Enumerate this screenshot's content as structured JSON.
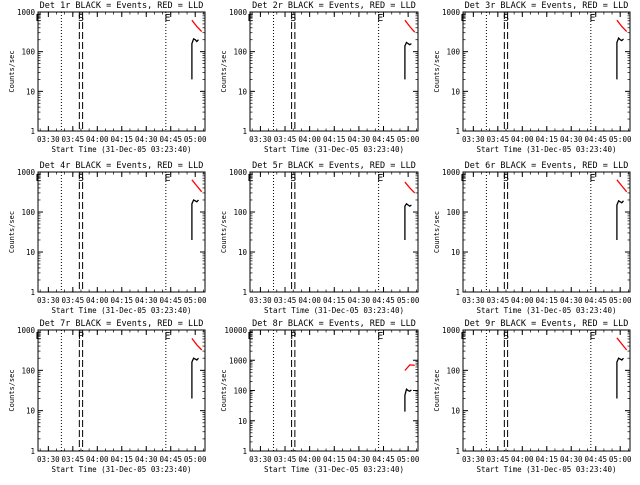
{
  "colors": {
    "events": "#000000",
    "lld": "#ff0000",
    "background": "#ffffff"
  },
  "chart_data": [
    {
      "type": "line",
      "detector": "1r",
      "title": "Det 1r BLACK = Events, RED = LLD",
      "xlabel": "Start Time (31-Dec-05 03:23:40)",
      "ylabel": "Counts/sec",
      "log_y": true,
      "ylim": [
        1,
        1000
      ],
      "ytick_labels": [
        "1",
        "10",
        "100",
        "1000"
      ],
      "xtick_labels": [
        "03:30",
        "03:45",
        "04:00",
        "04:15",
        "04:30",
        "04:45",
        "05:00"
      ],
      "dotted_lines": [
        "03:38",
        "04:42"
      ],
      "dashed_lines": [
        "03:49",
        "03:51"
      ],
      "markers": [
        {
          "text": "E",
          "x": "03:24"
        },
        {
          "text": "S",
          "x": "03:50"
        },
        {
          "text": "E",
          "x": "04:43"
        }
      ],
      "series": [
        {
          "name": "LLD",
          "x": [
            "04:58",
            "05:01",
            "05:04"
          ],
          "y": [
            620,
            430,
            320
          ]
        },
        {
          "name": "Events",
          "x": [
            "04:58",
            "04:58",
            "04:59",
            "05:00",
            "05:01",
            "05:02"
          ],
          "y": [
            20,
            160,
            210,
            200,
            180,
            200
          ]
        }
      ]
    },
    {
      "type": "line",
      "detector": "2r",
      "title": "Det 2r BLACK = Events, RED = LLD",
      "xlabel": "Start Time (31-Dec-05 03:23:40)",
      "ylabel": "Counts/sec",
      "log_y": true,
      "ylim": [
        1,
        1000
      ],
      "ytick_labels": [
        "1",
        "10",
        "100",
        "1000"
      ],
      "xtick_labels": [
        "03:30",
        "03:45",
        "04:00",
        "04:15",
        "04:30",
        "04:45",
        "05:00"
      ],
      "dotted_lines": [
        "03:38",
        "04:42"
      ],
      "dashed_lines": [
        "03:49",
        "03:51"
      ],
      "markers": [
        {
          "text": "E",
          "x": "03:24"
        },
        {
          "text": "S",
          "x": "03:50"
        },
        {
          "text": "E",
          "x": "04:43"
        }
      ],
      "series": [
        {
          "name": "LLD",
          "x": [
            "04:58",
            "05:01",
            "05:04"
          ],
          "y": [
            620,
            430,
            310
          ]
        },
        {
          "name": "Events",
          "x": [
            "04:58",
            "04:58",
            "04:59",
            "05:00",
            "05:01",
            "05:02"
          ],
          "y": [
            20,
            140,
            170,
            160,
            150,
            160
          ]
        }
      ]
    },
    {
      "type": "line",
      "detector": "3r",
      "title": "Det 3r BLACK = Events, RED = LLD",
      "xlabel": "Start Time (31-Dec-05 03:23:40)",
      "ylabel": "Counts/sec",
      "log_y": true,
      "ylim": [
        1,
        1000
      ],
      "ytick_labels": [
        "1",
        "10",
        "100",
        "1000"
      ],
      "xtick_labels": [
        "03:30",
        "03:45",
        "04:00",
        "04:15",
        "04:30",
        "04:45",
        "05:00"
      ],
      "dotted_lines": [
        "03:38",
        "04:42"
      ],
      "dashed_lines": [
        "03:49",
        "03:51"
      ],
      "markers": [
        {
          "text": "E",
          "x": "03:24"
        },
        {
          "text": "S",
          "x": "03:50"
        },
        {
          "text": "E",
          "x": "04:43"
        }
      ],
      "series": [
        {
          "name": "LLD",
          "x": [
            "04:58",
            "05:01",
            "05:04"
          ],
          "y": [
            620,
            430,
            320
          ]
        },
        {
          "name": "Events",
          "x": [
            "04:58",
            "04:58",
            "04:59",
            "05:00",
            "05:01",
            "05:02"
          ],
          "y": [
            20,
            170,
            220,
            200,
            190,
            210
          ]
        }
      ]
    },
    {
      "type": "line",
      "detector": "4r",
      "title": "Det 4r BLACK = Events, RED = LLD",
      "xlabel": "Start Time (31-Dec-05 03:23:40)",
      "ylabel": "Counts/sec",
      "log_y": true,
      "ylim": [
        1,
        1000
      ],
      "ytick_labels": [
        "1",
        "10",
        "100",
        "1000"
      ],
      "xtick_labels": [
        "03:30",
        "03:45",
        "04:00",
        "04:15",
        "04:30",
        "04:45",
        "05:00"
      ],
      "dotted_lines": [
        "03:38",
        "04:42"
      ],
      "dashed_lines": [
        "03:49",
        "03:51"
      ],
      "markers": [
        {
          "text": "E",
          "x": "03:24"
        },
        {
          "text": "S",
          "x": "03:50"
        },
        {
          "text": "E",
          "x": "04:43"
        }
      ],
      "series": [
        {
          "name": "LLD",
          "x": [
            "04:58",
            "05:01",
            "05:04"
          ],
          "y": [
            640,
            450,
            320
          ]
        },
        {
          "name": "Events",
          "x": [
            "04:58",
            "04:58",
            "04:59",
            "05:00",
            "05:01",
            "05:02"
          ],
          "y": [
            20,
            160,
            200,
            190,
            180,
            200
          ]
        }
      ]
    },
    {
      "type": "line",
      "detector": "5r",
      "title": "Det 5r BLACK = Events, RED = LLD",
      "xlabel": "Start Time (31-Dec-05 03:23:40)",
      "ylabel": "Counts/sec",
      "log_y": true,
      "ylim": [
        1,
        1000
      ],
      "ytick_labels": [
        "1",
        "10",
        "100",
        "1000"
      ],
      "xtick_labels": [
        "03:30",
        "03:45",
        "04:00",
        "04:15",
        "04:30",
        "04:45",
        "05:00"
      ],
      "dotted_lines": [
        "03:38",
        "04:42"
      ],
      "dashed_lines": [
        "03:49",
        "03:51"
      ],
      "markers": [
        {
          "text": "E",
          "x": "03:24"
        },
        {
          "text": "S",
          "x": "03:50"
        },
        {
          "text": "E",
          "x": "04:43"
        }
      ],
      "series": [
        {
          "name": "LLD",
          "x": [
            "04:58",
            "05:01",
            "05:04"
          ],
          "y": [
            560,
            400,
            300
          ]
        },
        {
          "name": "Events",
          "x": [
            "04:58",
            "04:58",
            "04:59",
            "05:00",
            "05:01",
            "05:02"
          ],
          "y": [
            20,
            140,
            160,
            150,
            140,
            150
          ]
        }
      ]
    },
    {
      "type": "line",
      "detector": "6r",
      "title": "Det 6r BLACK = Events, RED = LLD",
      "xlabel": "Start Time (31-Dec-05 03:23:40)",
      "ylabel": "Counts/sec",
      "log_y": true,
      "ylim": [
        1,
        1000
      ],
      "ytick_labels": [
        "1",
        "10",
        "100",
        "1000"
      ],
      "xtick_labels": [
        "03:30",
        "03:45",
        "04:00",
        "04:15",
        "04:30",
        "04:45",
        "05:00"
      ],
      "dotted_lines": [
        "03:38",
        "04:42"
      ],
      "dashed_lines": [
        "03:49",
        "03:51"
      ],
      "markers": [
        {
          "text": "E",
          "x": "03:24"
        },
        {
          "text": "S",
          "x": "03:50"
        },
        {
          "text": "E",
          "x": "04:43"
        }
      ],
      "series": [
        {
          "name": "LLD",
          "x": [
            "04:58",
            "05:01",
            "05:04"
          ],
          "y": [
            640,
            450,
            320
          ]
        },
        {
          "name": "Events",
          "x": [
            "04:58",
            "04:58",
            "04:59",
            "05:00",
            "05:01",
            "05:02"
          ],
          "y": [
            20,
            150,
            190,
            180,
            170,
            190
          ]
        }
      ]
    },
    {
      "type": "line",
      "detector": "7r",
      "title": "Det 7r BLACK = Events, RED = LLD",
      "xlabel": "Start Time (31-Dec-05 03:23:40)",
      "ylabel": "Counts/sec",
      "log_y": true,
      "ylim": [
        1,
        1000
      ],
      "ytick_labels": [
        "1",
        "10",
        "100",
        "1000"
      ],
      "xtick_labels": [
        "03:30",
        "03:45",
        "04:00",
        "04:15",
        "04:30",
        "04:45",
        "05:00"
      ],
      "dotted_lines": [
        "03:38",
        "04:42"
      ],
      "dashed_lines": [
        "03:49",
        "03:51"
      ],
      "markers": [
        {
          "text": "E",
          "x": "03:24"
        },
        {
          "text": "P",
          "x": "03:50"
        },
        {
          "text": "E",
          "x": "04:43"
        }
      ],
      "series": [
        {
          "name": "LLD",
          "x": [
            "04:58",
            "05:01",
            "05:04"
          ],
          "y": [
            620,
            430,
            320
          ]
        },
        {
          "name": "Events",
          "x": [
            "04:58",
            "04:58",
            "04:59",
            "05:00",
            "05:01",
            "05:02"
          ],
          "y": [
            20,
            160,
            200,
            190,
            180,
            200
          ]
        }
      ]
    },
    {
      "type": "line",
      "detector": "8r",
      "title": "Det 8r BLACK = Events, RED = LLD",
      "xlabel": "Start Time (31-Dec-05 03:23:40)",
      "ylabel": "Counts/sec",
      "log_y": true,
      "ylim": [
        1,
        10000
      ],
      "ytick_labels": [
        "1",
        "10",
        "100",
        "1000",
        "10000"
      ],
      "xtick_labels": [
        "03:30",
        "03:45",
        "04:00",
        "04:15",
        "04:30",
        "04:45",
        "05:00"
      ],
      "dotted_lines": [
        "03:38",
        "04:42"
      ],
      "dashed_lines": [
        "03:49",
        "03:51"
      ],
      "markers": [
        {
          "text": "E",
          "x": "03:24"
        },
        {
          "text": "P",
          "x": "03:50"
        },
        {
          "text": "E",
          "x": "04:43"
        }
      ],
      "series": [
        {
          "name": "LLD",
          "x": [
            "04:58",
            "05:01",
            "05:04"
          ],
          "y": [
            460,
            700,
            680
          ]
        },
        {
          "name": "Events",
          "x": [
            "04:58",
            "04:58",
            "04:59",
            "05:00",
            "05:01",
            "05:02"
          ],
          "y": [
            20,
            70,
            110,
            100,
            95,
            105
          ]
        }
      ]
    },
    {
      "type": "line",
      "detector": "9r",
      "title": "Det 9r BLACK = Events, RED = LLD",
      "xlabel": "Start Time (31-Dec-05 03:23:40)",
      "ylabel": "Counts/sec",
      "log_y": true,
      "ylim": [
        1,
        1000
      ],
      "ytick_labels": [
        "1",
        "10",
        "100",
        "1000"
      ],
      "xtick_labels": [
        "03:30",
        "03:45",
        "04:00",
        "04:15",
        "04:30",
        "04:45",
        "05:00"
      ],
      "dotted_lines": [
        "03:38",
        "04:42"
      ],
      "dashed_lines": [
        "03:49",
        "03:51"
      ],
      "markers": [
        {
          "text": "E",
          "x": "03:24"
        },
        {
          "text": "S",
          "x": "03:50"
        },
        {
          "text": "E",
          "x": "04:43"
        }
      ],
      "series": [
        {
          "name": "LLD",
          "x": [
            "04:58",
            "05:01",
            "05:04"
          ],
          "y": [
            640,
            450,
            320
          ]
        },
        {
          "name": "Events",
          "x": [
            "04:58",
            "04:58",
            "04:59",
            "05:00",
            "05:01",
            "05:02"
          ],
          "y": [
            20,
            160,
            200,
            190,
            180,
            200
          ]
        }
      ]
    }
  ]
}
